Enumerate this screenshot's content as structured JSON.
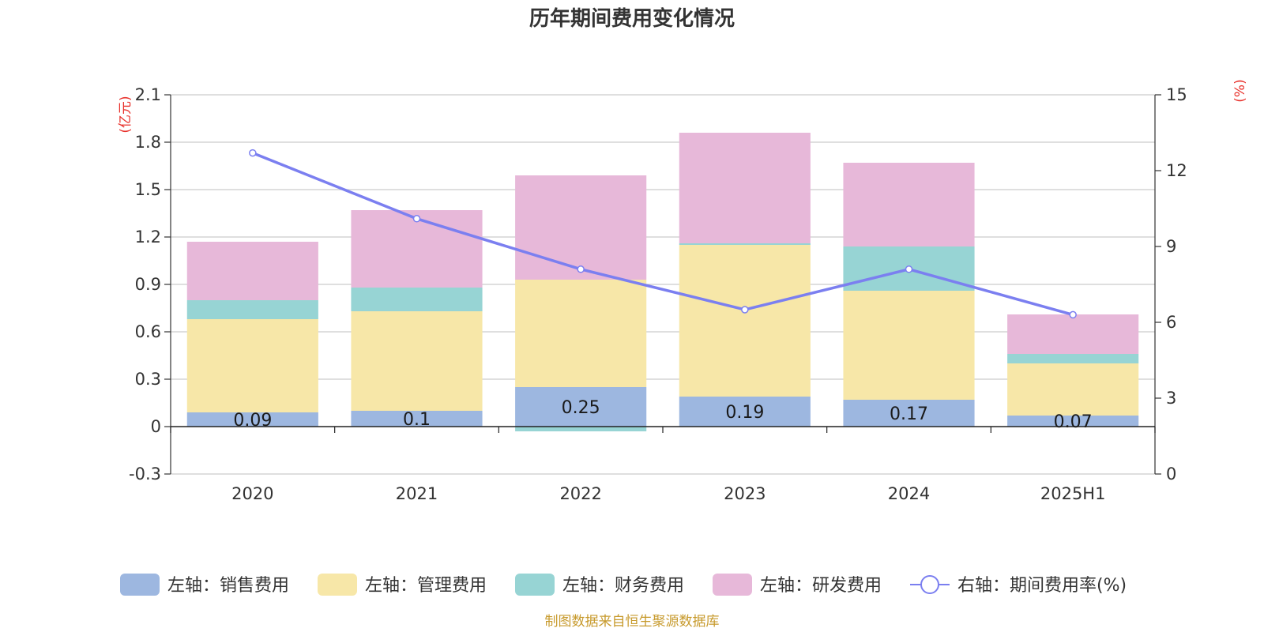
{
  "chart_data": {
    "type": "bar",
    "title": "历年期间费用变化情况",
    "left_axis_unit": "(亿元)",
    "right_axis_unit": "(%)",
    "categories": [
      "2020",
      "2021",
      "2022",
      "2023",
      "2024",
      "2025H1"
    ],
    "ylim_left": [
      -0.3,
      2.1
    ],
    "yticks_left": [
      "2.1",
      "1.8",
      "1.5",
      "1.2",
      "0.9",
      "0.6",
      "0.3",
      "0",
      "-0.3"
    ],
    "ylim_right": [
      0,
      15
    ],
    "yticks_right": [
      "15",
      "12",
      "9",
      "6",
      "3",
      "0"
    ],
    "stacked": true,
    "grid": true,
    "legend_position": "bottom",
    "series": [
      {
        "name": "左轴：销售费用",
        "type": "bar",
        "axis": "left",
        "color": "#9db7e0",
        "values": [
          0.09,
          0.1,
          0.25,
          0.19,
          0.17,
          0.07
        ],
        "labels": [
          "0.09",
          "0.1",
          "0.25",
          "0.19",
          "0.17",
          "0.07"
        ]
      },
      {
        "name": "左轴：管理费用",
        "type": "bar",
        "axis": "left",
        "color": "#f7e7a8",
        "values": [
          0.59,
          0.63,
          0.68,
          0.96,
          0.69,
          0.33
        ]
      },
      {
        "name": "左轴：财务费用",
        "type": "bar",
        "axis": "left",
        "color": "#97d4d4",
        "values": [
          0.12,
          0.15,
          -0.03,
          0.01,
          0.28,
          0.06
        ]
      },
      {
        "name": "左轴：研发费用",
        "type": "bar",
        "axis": "left",
        "color": "#e7b8d9",
        "values": [
          0.37,
          0.49,
          0.66,
          0.7,
          0.53,
          0.25
        ]
      },
      {
        "name": "右轴：期间费用率(%)",
        "type": "line",
        "axis": "right",
        "color": "#7b7ff0",
        "values": [
          12.7,
          10.1,
          8.1,
          6.5,
          8.1,
          6.3
        ]
      }
    ],
    "source": "制图数据来自恒生聚源数据库"
  }
}
